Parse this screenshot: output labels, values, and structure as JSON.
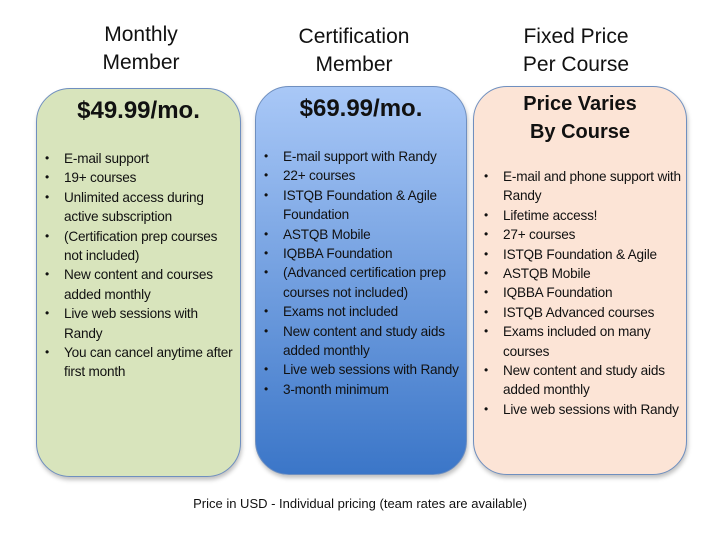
{
  "plans": [
    {
      "title_lines": [
        "Monthly",
        "Member"
      ],
      "price_lines": [
        "$49.99/mo."
      ],
      "features": [
        "E-mail support",
        "19+ courses",
        "Unlimited access during active subscription",
        "(Certification prep courses not included)",
        "New content and courses added monthly",
        "Live web sessions with Randy",
        "You can cancel anytime after first month"
      ],
      "color": "#d8e4bc"
    },
    {
      "title_lines": [
        "Certification",
        "Member"
      ],
      "price_lines": [
        "$69.99/mo."
      ],
      "features": [
        "E-mail support with Randy",
        "22+ courses",
        "ISTQB Foundation & Agile Foundation",
        "ASTQB Mobile",
        "IQBBA Foundation",
        "(Advanced certification prep courses not included)",
        "Exams not included",
        "New content and study aids added monthly",
        "Live web sessions with Randy",
        "3-month minimum"
      ],
      "color": "#5b8fd6"
    },
    {
      "title_lines": [
        "Fixed Price",
        "Per Course"
      ],
      "price_lines": [
        "Price Varies",
        "By Course"
      ],
      "features": [
        "E-mail and phone support with Randy",
        "Lifetime access!",
        "27+ courses",
        "ISTQB Foundation & Agile",
        "ASTQB Mobile",
        "IQBBA Foundation",
        "ISTQB Advanced courses",
        "Exams included on many courses",
        "New content and study aids added monthly",
        "Live web sessions with Randy"
      ],
      "color": "#fce4d6"
    }
  ],
  "footer": "Price in USD -  Individual pricing (team rates are available)"
}
